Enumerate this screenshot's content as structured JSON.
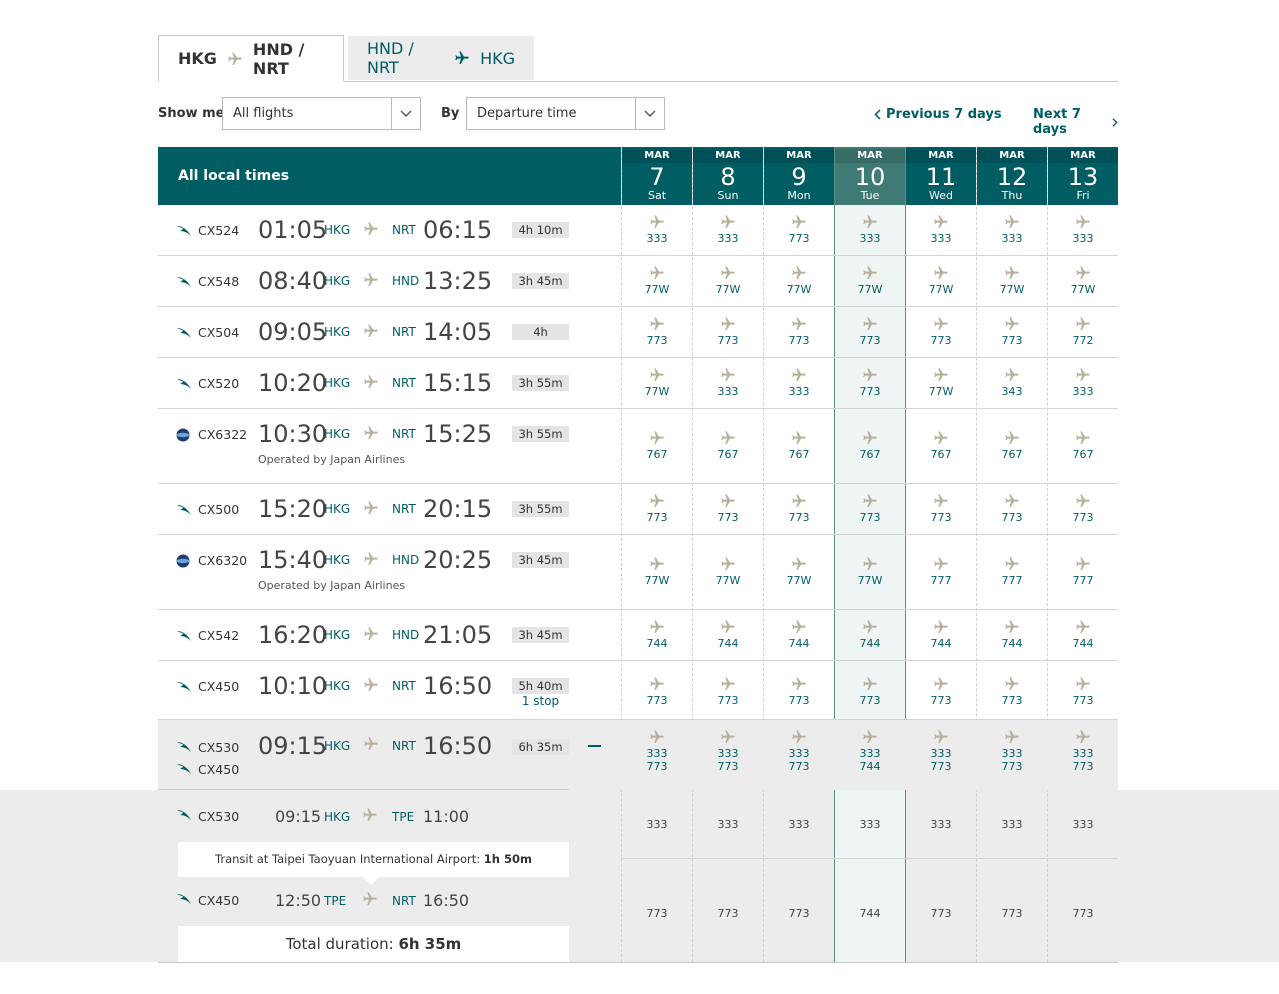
{
  "tabs": [
    {
      "from": "HKG",
      "to": "HND / NRT",
      "active": true
    },
    {
      "from": "HND / NRT",
      "to": "HKG",
      "active": false
    }
  ],
  "filters": {
    "show_me_label": "Show me",
    "show_me_value": "All flights",
    "by_label": "By",
    "by_value": "Departure time",
    "prev_label": "Previous 7 days",
    "next_label": "Next 7 days"
  },
  "header": {
    "all_local_times": "All local times",
    "days": [
      {
        "month": "MAR",
        "day": "7",
        "weekday": "Sat"
      },
      {
        "month": "MAR",
        "day": "8",
        "weekday": "Sun"
      },
      {
        "month": "MAR",
        "day": "9",
        "weekday": "Mon"
      },
      {
        "month": "MAR",
        "day": "10",
        "weekday": "Tue",
        "selected": true
      },
      {
        "month": "MAR",
        "day": "11",
        "weekday": "Wed"
      },
      {
        "month": "MAR",
        "day": "12",
        "weekday": "Thu"
      },
      {
        "month": "MAR",
        "day": "13",
        "weekday": "Fri"
      }
    ]
  },
  "colors": {
    "teal": "#005d63",
    "selected_header": "#3f7a74",
    "selected_column": "#eef5f4"
  },
  "flights": [
    {
      "flight": "CX524",
      "dep": "01:05",
      "from": "HKG",
      "to": "NRT",
      "arr": "06:15",
      "duration": "4h 10m",
      "aircraft": [
        "333",
        "333",
        "773",
        "333",
        "333",
        "333",
        "333"
      ],
      "logo": "cx-logo-icon"
    },
    {
      "flight": "CX548",
      "dep": "08:40",
      "from": "HKG",
      "to": "HND",
      "arr": "13:25",
      "duration": "3h 45m",
      "aircraft": [
        "77W",
        "77W",
        "77W",
        "77W",
        "77W",
        "77W",
        "77W"
      ],
      "logo": "cx-logo-icon"
    },
    {
      "flight": "CX504",
      "dep": "09:05",
      "from": "HKG",
      "to": "NRT",
      "arr": "14:05",
      "duration": "4h",
      "aircraft": [
        "773",
        "773",
        "773",
        "773",
        "773",
        "773",
        "772"
      ],
      "logo": "cx-logo-icon"
    },
    {
      "flight": "CX520",
      "dep": "10:20",
      "from": "HKG",
      "to": "NRT",
      "arr": "15:15",
      "duration": "3h 55m",
      "aircraft": [
        "77W",
        "333",
        "333",
        "773",
        "77W",
        "343",
        "333"
      ],
      "logo": "cx-logo-icon"
    },
    {
      "flight": "CX6322",
      "dep": "10:30",
      "from": "HKG",
      "to": "NRT",
      "arr": "15:25",
      "duration": "3h 55m",
      "operated": "Operated by Japan Airlines",
      "aircraft": [
        "767",
        "767",
        "767",
        "767",
        "767",
        "767",
        "767"
      ],
      "logo": "oneworld-logo-icon"
    },
    {
      "flight": "CX500",
      "dep": "15:20",
      "from": "HKG",
      "to": "NRT",
      "arr": "20:15",
      "duration": "3h 55m",
      "aircraft": [
        "773",
        "773",
        "773",
        "773",
        "773",
        "773",
        "773"
      ],
      "logo": "cx-logo-icon"
    },
    {
      "flight": "CX6320",
      "dep": "15:40",
      "from": "HKG",
      "to": "HND",
      "arr": "20:25",
      "duration": "3h 45m",
      "operated": "Operated by Japan Airlines",
      "aircraft": [
        "77W",
        "77W",
        "77W",
        "77W",
        "777",
        "777",
        "777"
      ],
      "logo": "oneworld-logo-icon"
    },
    {
      "flight": "CX542",
      "dep": "16:20",
      "from": "HKG",
      "to": "HND",
      "arr": "21:05",
      "duration": "3h 45m",
      "aircraft": [
        "744",
        "744",
        "744",
        "744",
        "744",
        "744",
        "744"
      ],
      "logo": "cx-logo-icon"
    },
    {
      "flight": "CX450",
      "dep": "10:10",
      "from": "HKG",
      "to": "NRT",
      "arr": "16:50",
      "duration": "5h 40m",
      "stops": "1 stop",
      "aircraft": [
        "773",
        "773",
        "773",
        "773",
        "773",
        "773",
        "773"
      ],
      "logo": "cx-logo-icon"
    }
  ],
  "expanded": {
    "flights": [
      "CX530",
      "CX450"
    ],
    "dep": "09:15",
    "from": "HKG",
    "to": "NRT",
    "arr": "16:50",
    "duration": "6h 35m",
    "aircraft_top": [
      "333",
      "333",
      "333",
      "333",
      "333",
      "333",
      "333"
    ],
    "aircraft_bottom": [
      "773",
      "773",
      "773",
      "744",
      "773",
      "773",
      "773"
    ],
    "segments": [
      {
        "flight": "CX530",
        "dep": "09:15",
        "from": "HKG",
        "to": "TPE",
        "arr": "11:00",
        "aircraft": [
          "333",
          "333",
          "333",
          "333",
          "333",
          "333",
          "333"
        ]
      },
      {
        "flight": "CX450",
        "dep": "12:50",
        "from": "TPE",
        "to": "NRT",
        "arr": "16:50",
        "aircraft": [
          "773",
          "773",
          "773",
          "744",
          "773",
          "773",
          "773"
        ]
      }
    ],
    "transit_text": "Transit at Taipei Taoyuan International Airport: ",
    "transit_time": "1h 50m",
    "total_label": "Total duration: ",
    "total_value": "6h 35m"
  }
}
